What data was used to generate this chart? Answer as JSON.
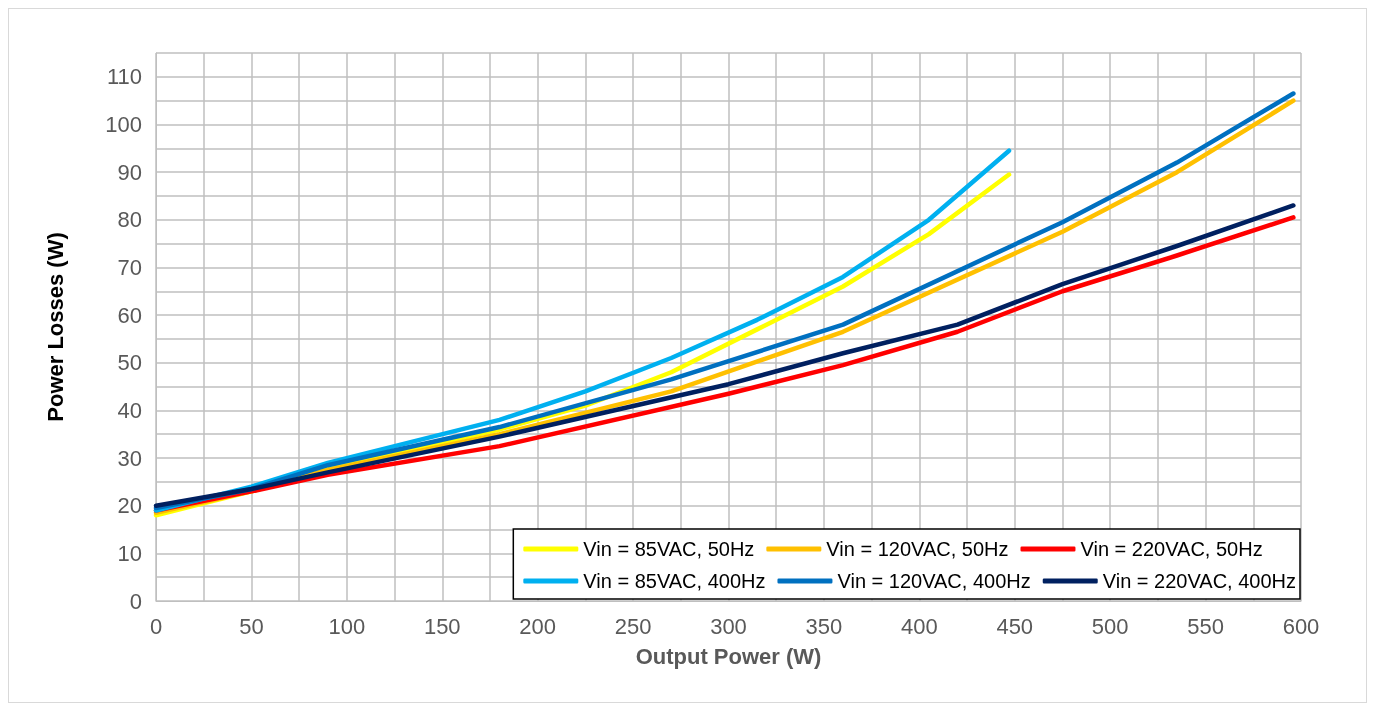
{
  "chart_data": {
    "type": "line",
    "xlabel": "Output Power (W)",
    "ylabel": "Power Losses (W)",
    "xlim": [
      0,
      600
    ],
    "xticks": [
      0,
      50,
      100,
      150,
      200,
      250,
      300,
      350,
      400,
      450,
      500,
      550,
      600
    ],
    "ylim": [
      0,
      115
    ],
    "yticks": [
      0,
      10,
      20,
      30,
      40,
      50,
      60,
      70,
      80,
      90,
      100,
      110
    ],
    "grid": true,
    "legend": "bottom right",
    "marker": "none",
    "line_style": "solid",
    "series": [
      {
        "name": "Vin = 85VAC, 50Hz",
        "color": "#ffff00",
        "x": [
          0,
          50,
          90,
          135,
          180,
          225,
          270,
          315,
          360,
          405,
          447
        ],
        "values": [
          18,
          23,
          28,
          32,
          36,
          41,
          48,
          57,
          66,
          77,
          89.5
        ]
      },
      {
        "name": "Vin = 120VAC, 50Hz",
        "color": "#ffc000",
        "x": [
          0,
          50,
          90,
          180,
          270,
          360,
          475,
          535,
          596
        ],
        "values": [
          18.5,
          23,
          27.5,
          35,
          44,
          56.5,
          77.5,
          90,
          105
        ]
      },
      {
        "name": "Vin = 220VAC, 50Hz",
        "color": "#ff0000",
        "x": [
          0,
          50,
          90,
          180,
          300,
          360,
          420,
          475,
          535,
          596
        ],
        "values": [
          19,
          23,
          26.5,
          32.5,
          43.5,
          49.5,
          56.5,
          65,
          72.5,
          80.5
        ]
      },
      {
        "name": "Vin = 85VAC, 400Hz",
        "color": "#00b0f0",
        "x": [
          0,
          50,
          90,
          135,
          180,
          225,
          270,
          315,
          360,
          405,
          447
        ],
        "values": [
          19,
          24,
          29,
          33.5,
          38,
          44,
          51,
          59,
          68,
          80,
          94.5
        ]
      },
      {
        "name": "Vin = 120VAC, 400Hz",
        "color": "#0070c0",
        "x": [
          0,
          50,
          90,
          180,
          270,
          360,
          475,
          535,
          596
        ],
        "values": [
          19.5,
          23.5,
          28.5,
          36.5,
          46.5,
          58,
          79.5,
          92,
          106.5
        ]
      },
      {
        "name": "Vin = 220VAC, 400Hz",
        "color": "#002060",
        "x": [
          0,
          50,
          90,
          180,
          300,
          360,
          420,
          475,
          535,
          596
        ],
        "values": [
          20,
          23.5,
          27,
          34.5,
          45.5,
          52,
          58,
          66.5,
          74.5,
          83
        ]
      }
    ]
  }
}
